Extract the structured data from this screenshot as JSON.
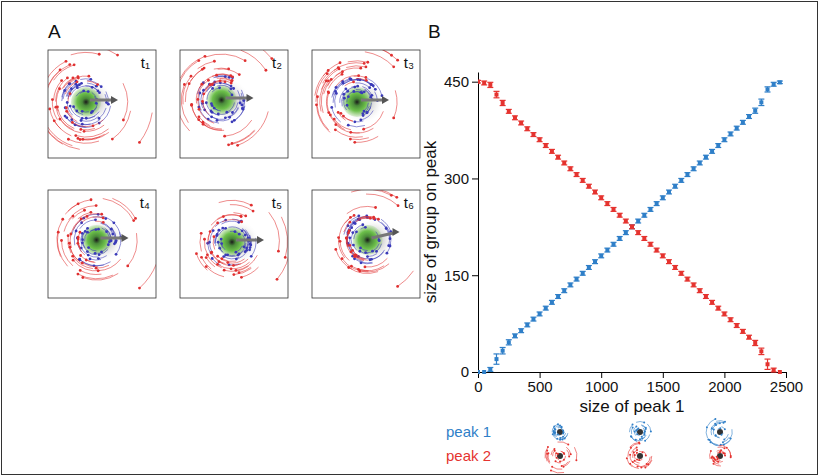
{
  "panel_a": {
    "label": "A",
    "frames": [
      "t₁",
      "t₂",
      "t₃",
      "t₄",
      "t₅",
      "t₆"
    ]
  },
  "chart_data": {
    "type": "scatter",
    "panel_label": "B",
    "x_label": "size of peak 1",
    "y_label": "size of group on peak",
    "x": [
      0,
      50,
      100,
      150,
      200,
      250,
      300,
      350,
      400,
      450,
      500,
      550,
      600,
      650,
      700,
      750,
      800,
      850,
      900,
      950,
      1000,
      1050,
      1100,
      1150,
      1200,
      1250,
      1300,
      1350,
      1400,
      1450,
      1500,
      1550,
      1600,
      1650,
      1700,
      1750,
      1800,
      1850,
      1900,
      1950,
      2000,
      2050,
      2100,
      2150,
      2200,
      2250,
      2300,
      2350,
      2400,
      2450
    ],
    "xlim": [
      0,
      2500
    ],
    "xticks": [
      0,
      500,
      1000,
      1500,
      2000,
      2500
    ],
    "ylim": [
      0,
      465
    ],
    "yticks": [
      0,
      150,
      300,
      450
    ],
    "marker": "square",
    "legend": "bottom",
    "series": [
      {
        "name": "peak 1",
        "color": "#2f7fc8",
        "values": [
          0,
          0,
          4,
          20,
          33,
          46,
          56,
          64,
          73,
          82,
          90,
          99,
          108,
          117,
          126,
          135,
          144,
          153,
          162,
          171,
          180,
          189,
          198,
          207,
          216,
          225,
          234,
          243,
          252,
          261,
          270,
          279,
          288,
          297,
          306,
          315,
          324,
          333,
          342,
          351,
          360,
          369,
          378,
          387,
          396,
          405,
          418,
          438,
          446,
          449
        ],
        "errors": [
          0,
          0,
          3,
          8,
          5,
          4,
          3,
          3,
          3,
          3,
          3,
          3,
          3,
          3,
          3,
          3,
          3,
          3,
          3,
          3,
          3,
          3,
          3,
          3,
          3,
          3,
          3,
          3,
          3,
          3,
          3,
          3,
          3,
          3,
          3,
          3,
          3,
          3,
          3,
          3,
          3,
          3,
          3,
          3,
          3,
          4,
          5,
          4,
          3,
          2
        ]
      },
      {
        "name": "peak 2",
        "color": "#e5332f",
        "values": [
          450,
          448,
          445,
          430,
          417,
          404,
          394,
          386,
          377,
          368,
          360,
          351,
          342,
          333,
          324,
          315,
          306,
          297,
          288,
          279,
          270,
          261,
          252,
          243,
          234,
          225,
          216,
          207,
          198,
          189,
          180,
          171,
          162,
          153,
          144,
          135,
          126,
          117,
          108,
          99,
          90,
          81,
          72,
          63,
          54,
          45,
          32,
          12,
          3,
          0
        ],
        "errors": [
          2,
          3,
          4,
          5,
          4,
          3,
          3,
          3,
          3,
          3,
          3,
          3,
          3,
          3,
          3,
          3,
          3,
          3,
          3,
          3,
          3,
          3,
          3,
          3,
          3,
          3,
          3,
          3,
          3,
          3,
          3,
          3,
          3,
          3,
          3,
          3,
          3,
          3,
          3,
          3,
          3,
          3,
          3,
          3,
          3,
          4,
          5,
          8,
          3,
          0
        ]
      }
    ]
  }
}
